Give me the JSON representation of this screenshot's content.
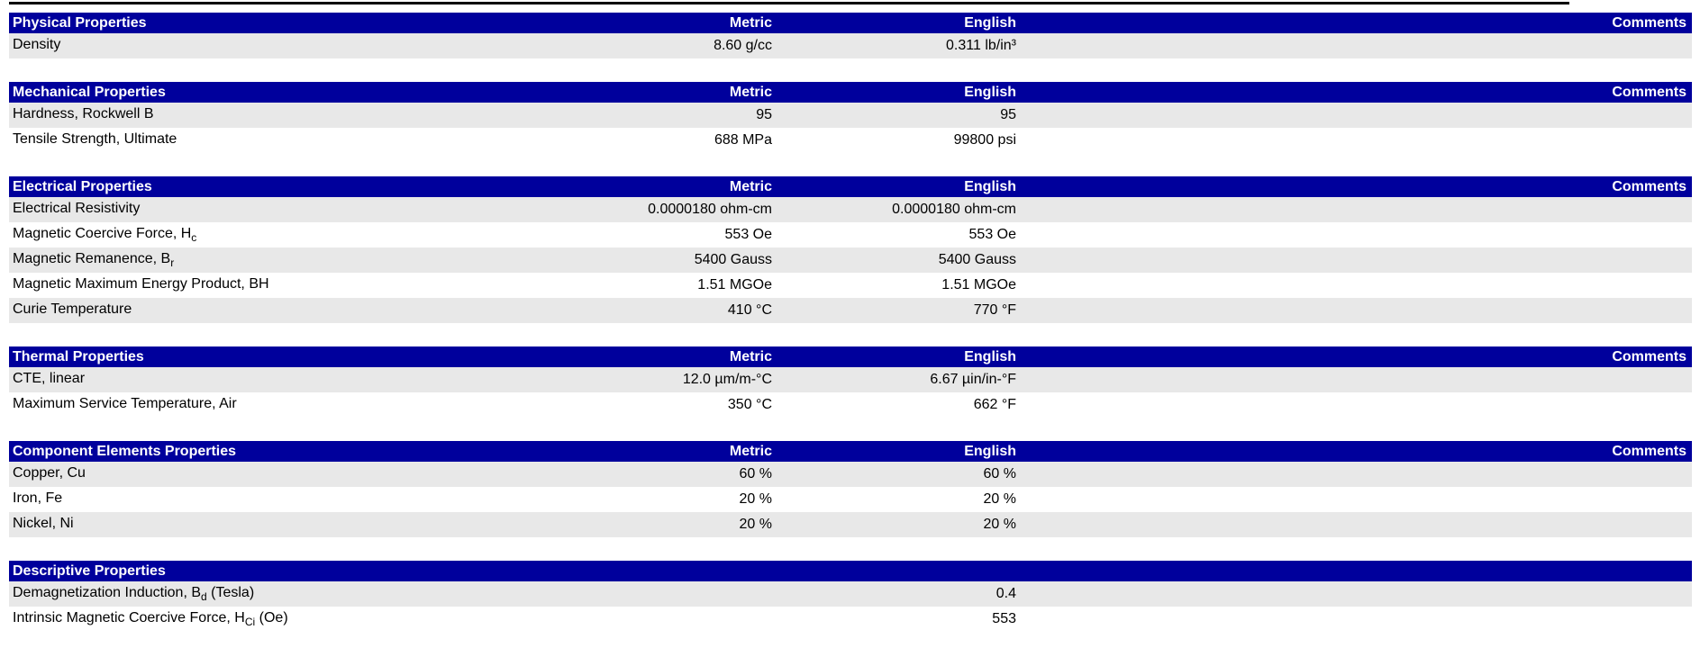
{
  "colors": {
    "header_bar": "#00009C",
    "row_alt": "#e8e8e8",
    "row_base": "#ffffff",
    "header_text": "#ffffff",
    "body_text": "#000000",
    "top_line": "#000000"
  },
  "columns": {
    "metric": "Metric",
    "english": "English",
    "comments": "Comments"
  },
  "sections": [
    {
      "title": "Physical Properties",
      "has_column_headers": true,
      "rows": [
        {
          "name_pre": "Density",
          "name_sub": "",
          "name_post": "",
          "metric": "8.60 g/cc",
          "english": "0.311 lb/in³",
          "comments": ""
        }
      ]
    },
    {
      "title": "Mechanical Properties",
      "has_column_headers": true,
      "rows": [
        {
          "name_pre": "Hardness, Rockwell B",
          "name_sub": "",
          "name_post": "",
          "metric": "95",
          "english": "95",
          "comments": ""
        },
        {
          "name_pre": "Tensile Strength, Ultimate",
          "name_sub": "",
          "name_post": "",
          "metric": "688 MPa",
          "english": "99800 psi",
          "comments": ""
        }
      ]
    },
    {
      "title": "Electrical Properties",
      "has_column_headers": true,
      "rows": [
        {
          "name_pre": "Electrical Resistivity",
          "name_sub": "",
          "name_post": "",
          "metric": "0.0000180 ohm-cm",
          "english": "0.0000180 ohm-cm",
          "comments": ""
        },
        {
          "name_pre": "Magnetic Coercive Force, H",
          "name_sub": "c",
          "name_post": "",
          "metric": "553 Oe",
          "english": "553 Oe",
          "comments": ""
        },
        {
          "name_pre": "Magnetic Remanence, B",
          "name_sub": "r",
          "name_post": "",
          "metric": "5400 Gauss",
          "english": "5400 Gauss",
          "comments": ""
        },
        {
          "name_pre": "Magnetic Maximum Energy Product, BH",
          "name_sub": "",
          "name_post": "",
          "metric": "1.51 MGOe",
          "english": "1.51 MGOe",
          "comments": ""
        },
        {
          "name_pre": "Curie Temperature",
          "name_sub": "",
          "name_post": "",
          "metric": "410 °C",
          "english": "770 °F",
          "comments": ""
        }
      ]
    },
    {
      "title": "Thermal Properties",
      "has_column_headers": true,
      "rows": [
        {
          "name_pre": "CTE, linear",
          "name_sub": "",
          "name_post": "",
          "metric": "12.0 µm/m-°C",
          "english": "6.67 µin/in-°F",
          "comments": ""
        },
        {
          "name_pre": "Maximum Service Temperature, Air",
          "name_sub": "",
          "name_post": "",
          "metric": "350 °C",
          "english": "662 °F",
          "comments": ""
        }
      ]
    },
    {
      "title": "Component Elements Properties",
      "has_column_headers": true,
      "rows": [
        {
          "name_pre": "Copper, Cu",
          "name_sub": "",
          "name_post": "",
          "metric": "60 %",
          "english": "60 %",
          "comments": ""
        },
        {
          "name_pre": "Iron, Fe",
          "name_sub": "",
          "name_post": "",
          "metric": "20 %",
          "english": "20 %",
          "comments": ""
        },
        {
          "name_pre": "Nickel, Ni",
          "name_sub": "",
          "name_post": "",
          "metric": "20 %",
          "english": "20 %",
          "comments": ""
        }
      ]
    },
    {
      "title": "Descriptive Properties",
      "has_column_headers": false,
      "rows": [
        {
          "name_pre": "Demagnetization Induction, B",
          "name_sub": "d",
          "name_post": " (Tesla)",
          "metric": "",
          "value": "0.4",
          "comments": ""
        },
        {
          "name_pre": "Intrinsic Magnetic Coercive Force, H",
          "name_sub": "Ci",
          "name_post": " (Oe)",
          "metric": "",
          "value": "553",
          "comments": ""
        }
      ]
    }
  ]
}
